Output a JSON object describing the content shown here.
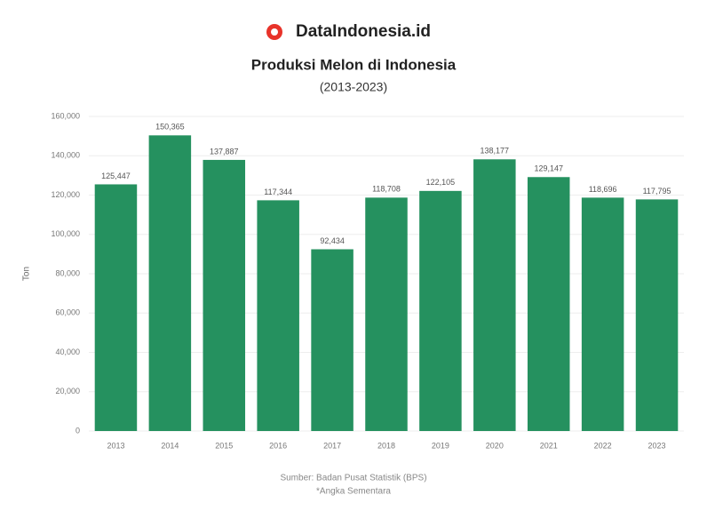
{
  "brand": "DataIndonesia.id",
  "chart_data": {
    "type": "bar",
    "title": "Produksi Melon di Indonesia",
    "subtitle": "(2013-2023)",
    "y_label": "Ton",
    "categories": [
      "2013",
      "2014",
      "2015",
      "2016",
      "2017",
      "2018",
      "2019",
      "2020",
      "2021",
      "2022",
      "2023"
    ],
    "values": [
      125447,
      150365,
      137887,
      117344,
      92434,
      118708,
      122105,
      138177,
      129147,
      118696,
      117795
    ],
    "value_labels": [
      "125,447",
      "150,365",
      "137,887",
      "117,344",
      "92,434",
      "118,708",
      "122,105",
      "138,177",
      "129,147",
      "118,696",
      "117,795"
    ],
    "color": "#25915f",
    "ylim": [
      0,
      160000
    ],
    "yticks": [
      0,
      {
        "value": 20000,
        "label": "20,000"
      },
      {
        "value": 40000,
        "label": "40,000"
      },
      {
        "value": 60000,
        "label": "60,000"
      },
      {
        "value": 80000,
        "label": "80,000"
      },
      {
        "value": 100000,
        "label": "100,000"
      },
      {
        "value": 120000,
        "label": "120,000"
      },
      {
        "value": 140000,
        "label": "140,000"
      },
      {
        "value": 160000,
        "label": "160,000"
      }
    ],
    "grid": true,
    "source": "Sumber: Badan Pusat Statistik (BPS)",
    "note": "*Angka Sementara"
  }
}
